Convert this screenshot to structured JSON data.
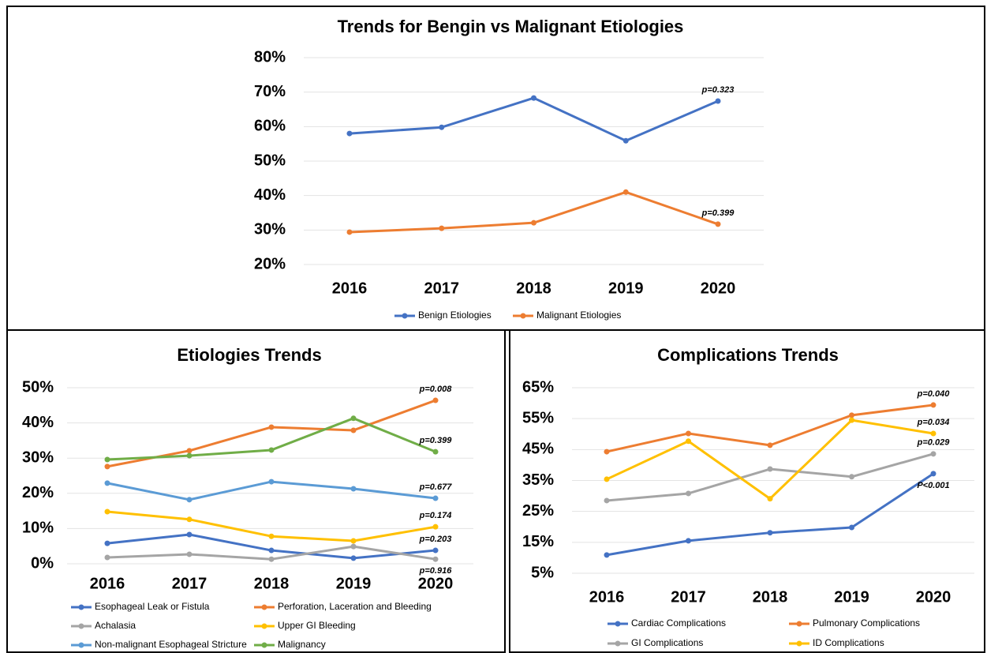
{
  "chart_data": [
    {
      "type": "line",
      "title": "Trends for Bengin vs Malignant Etiologies",
      "categories": [
        "2016",
        "2017",
        "2018",
        "2019",
        "2020"
      ],
      "series": [
        {
          "name": "Benign Etiologies",
          "color": "#4472c4",
          "values": [
            58,
            59.8,
            68.3,
            55.9,
            67.4
          ],
          "annotation": "p=0.323"
        },
        {
          "name": "Malignant Etiologies",
          "color": "#ed7d31",
          "values": [
            29.4,
            30.5,
            32.1,
            41,
            31.7
          ],
          "annotation": "p=0.399"
        }
      ],
      "ylim": [
        20,
        80
      ],
      "yticks": [
        {
          "value": 20,
          "label": "20%"
        },
        {
          "value": 30,
          "label": "30%"
        },
        {
          "value": 40,
          "label": "40%"
        },
        {
          "value": 50,
          "label": "50%"
        },
        {
          "value": 60,
          "label": "60%"
        },
        {
          "value": 70,
          "label": "70%"
        },
        {
          "value": 80,
          "label": "80%"
        }
      ],
      "grid": true
    },
    {
      "type": "line",
      "title": "Etiologies Trends",
      "categories": [
        "2016",
        "2017",
        "2018",
        "2019",
        "2020"
      ],
      "series": [
        {
          "name": "Esophageal Leak or Fistula",
          "color": "#4472c4",
          "values": [
            5.8,
            8.3,
            3.8,
            1.6,
            3.8
          ],
          "annotation": "p=0.203"
        },
        {
          "name": "Perforation, Laceration and Bleeding",
          "color": "#ed7d31",
          "values": [
            27.6,
            32.1,
            38.8,
            37.9,
            46.4
          ],
          "annotation": "p=0.008"
        },
        {
          "name": "Achalasia",
          "color": "#a5a5a5",
          "values": [
            1.8,
            2.7,
            1.3,
            4.9,
            1.3
          ],
          "annotation": "p=0.916"
        },
        {
          "name": "Upper GI Bleeding",
          "color": "#ffc000",
          "values": [
            14.8,
            12.6,
            7.8,
            6.5,
            10.5
          ],
          "annotation": "p=0.174"
        },
        {
          "name": "Non-malignant Esophageal Stricture",
          "color": "#5b9bd5",
          "values": [
            22.9,
            18.2,
            23.3,
            21.3,
            18.6
          ],
          "annotation": "p=0.677"
        },
        {
          "name": "Malignancy",
          "color": "#70ad47",
          "values": [
            29.6,
            30.7,
            32.3,
            41.3,
            31.8
          ],
          "annotation": "p=0.399"
        }
      ],
      "ylim": [
        0,
        50
      ],
      "yticks": [
        {
          "value": 0,
          "label": "0%"
        },
        {
          "value": 10,
          "label": "10%"
        },
        {
          "value": 20,
          "label": "20%"
        },
        {
          "value": 30,
          "label": "30%"
        },
        {
          "value": 40,
          "label": "40%"
        },
        {
          "value": 50,
          "label": "50%"
        }
      ],
      "grid": true
    },
    {
      "type": "line",
      "title": "Complications Trends",
      "categories": [
        "2016",
        "2017",
        "2018",
        "2019",
        "2020"
      ],
      "series": [
        {
          "name": "Cardiac Complications",
          "color": "#4472c4",
          "values": [
            10.9,
            15.5,
            18.1,
            19.8,
            37.2
          ],
          "annotation": "P<0.001"
        },
        {
          "name": "Pulmonary Complications",
          "color": "#ed7d31",
          "values": [
            44.3,
            50.2,
            46.4,
            56.1,
            59.4
          ],
          "annotation": "p=0.040"
        },
        {
          "name": "GI Complications",
          "color": "#a5a5a5",
          "values": [
            28.5,
            30.8,
            38.7,
            36.2,
            43.6
          ],
          "annotation": "p=0.029"
        },
        {
          "name": "ID Complications",
          "color": "#ffc000",
          "values": [
            35.4,
            47.7,
            29.1,
            54.5,
            50.2
          ],
          "annotation": "p=0.034"
        }
      ],
      "ylim": [
        5,
        65
      ],
      "yticks": [
        {
          "value": 5,
          "label": "5%"
        },
        {
          "value": 15,
          "label": "15%"
        },
        {
          "value": 25,
          "label": "25%"
        },
        {
          "value": 35,
          "label": "35%"
        },
        {
          "value": 45,
          "label": "45%"
        },
        {
          "value": 55,
          "label": "55%"
        },
        {
          "value": 65,
          "label": "65%"
        }
      ],
      "grid": true
    }
  ]
}
